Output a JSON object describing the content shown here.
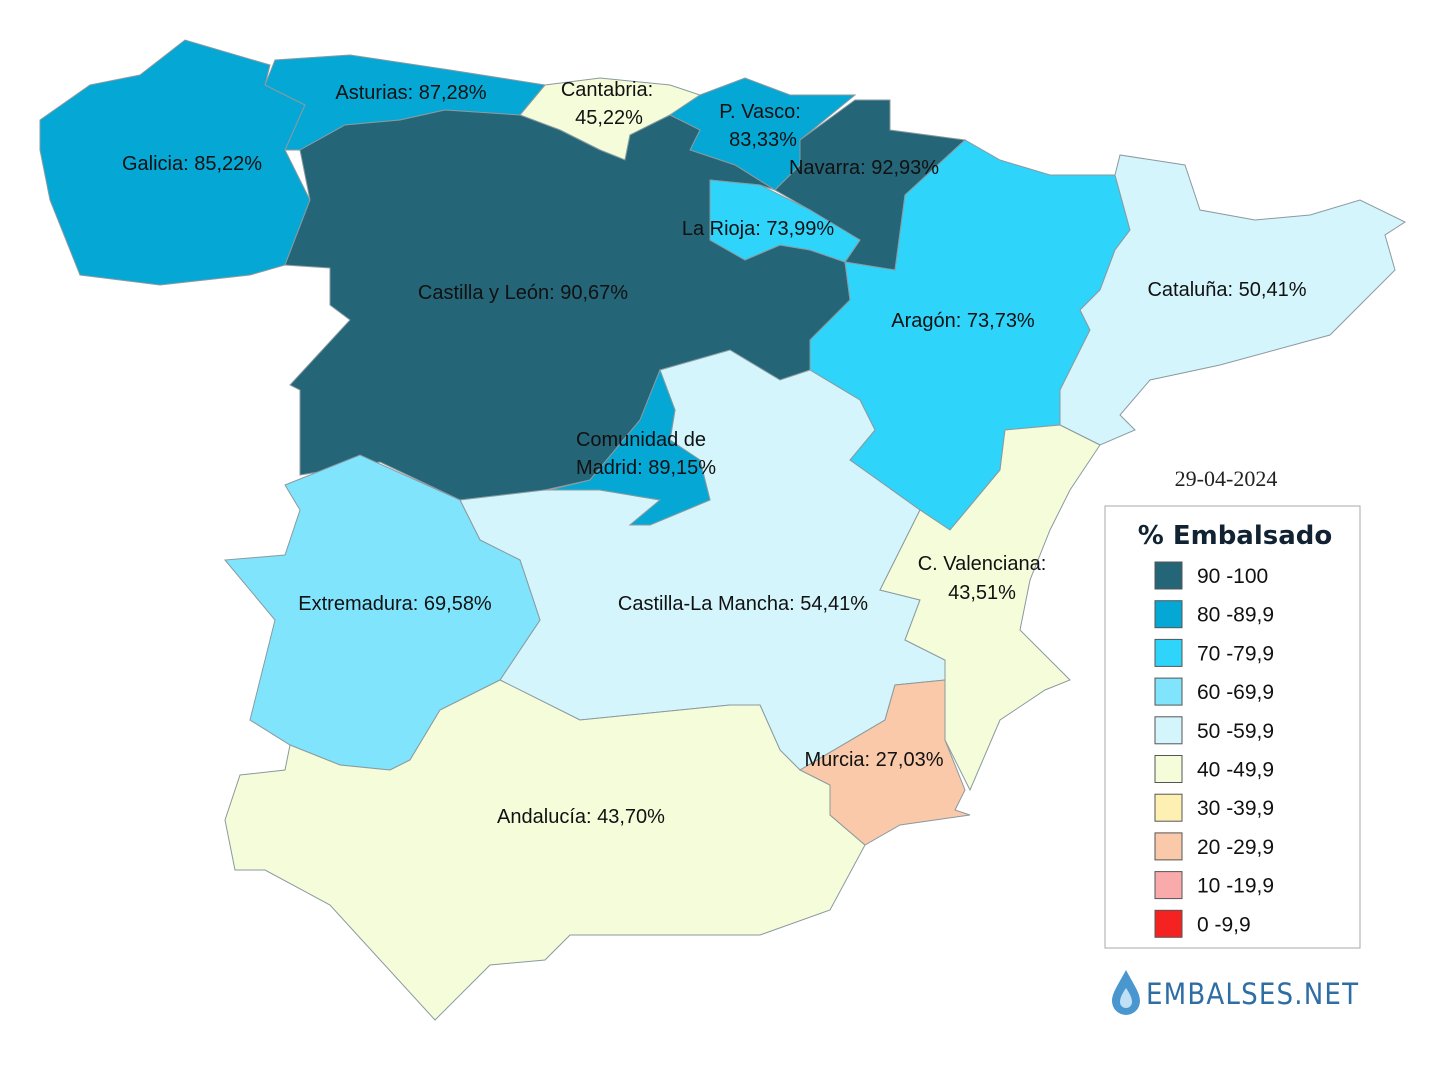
{
  "date": "29-04-2024",
  "legend": {
    "title": "% Embalsado",
    "entries": [
      {
        "label": "90 -100",
        "color": "#246578"
      },
      {
        "label": "80 -89,9",
        "color": "#05a7d4"
      },
      {
        "label": "70 -79,9",
        "color": "#2fd4fb"
      },
      {
        "label": "60 -69,9",
        "color": "#80e4fc"
      },
      {
        "label": "50 -59,9",
        "color": "#d4f5fc"
      },
      {
        "label": "40 -49,9",
        "color": "#f5fcd9"
      },
      {
        "label": "30 -39,9",
        "color": "#fdf0b2"
      },
      {
        "label": "20 -29,9",
        "color": "#f9c9a9"
      },
      {
        "label": "10 -19,9",
        "color": "#f9abab"
      },
      {
        "label": "0 -9,9",
        "color": "#f52222"
      }
    ]
  },
  "regions": [
    {
      "label": [
        "Galicia: 85,22%"
      ],
      "color": "#05a7d4"
    },
    {
      "label": [
        "Asturias: 87,28%"
      ],
      "color": "#05a7d4"
    },
    {
      "label": [
        "Cantabria:",
        "45,22%"
      ],
      "color": "#f5fcd9"
    },
    {
      "label": [
        "P. Vasco:",
        "83,33%"
      ],
      "color": "#05a7d4"
    },
    {
      "label": [
        "Navarra: 92,93%"
      ],
      "color": "#246578"
    },
    {
      "label": [
        "La Rioja: 73,99%"
      ],
      "color": "#2fd4fb"
    },
    {
      "label": [
        "Castilla y León: 90,67%"
      ],
      "color": "#246578"
    },
    {
      "label": [
        "Comunidad de",
        "Madrid: 89,15%"
      ],
      "color": "#05a7d4"
    },
    {
      "label": [
        "Aragón: 73,73%"
      ],
      "color": "#2fd4fb"
    },
    {
      "label": [
        "Cataluña: 50,41%"
      ],
      "color": "#d4f5fc"
    },
    {
      "label": [
        "Castilla-La Mancha: 54,41%"
      ],
      "color": "#d4f5fc"
    },
    {
      "label": [
        "Extremadura: 69,58%"
      ],
      "color": "#80e4fc"
    },
    {
      "label": [
        "Andalucía: 43,70%"
      ],
      "color": "#f5fcd9"
    },
    {
      "label": [
        "Murcia: 27,03%"
      ],
      "color": "#f9c9a9"
    },
    {
      "label": [
        "C. Valenciana:",
        "43,51%"
      ],
      "color": "#f5fcd9"
    }
  ],
  "logo": "EMBALSES.NET"
}
